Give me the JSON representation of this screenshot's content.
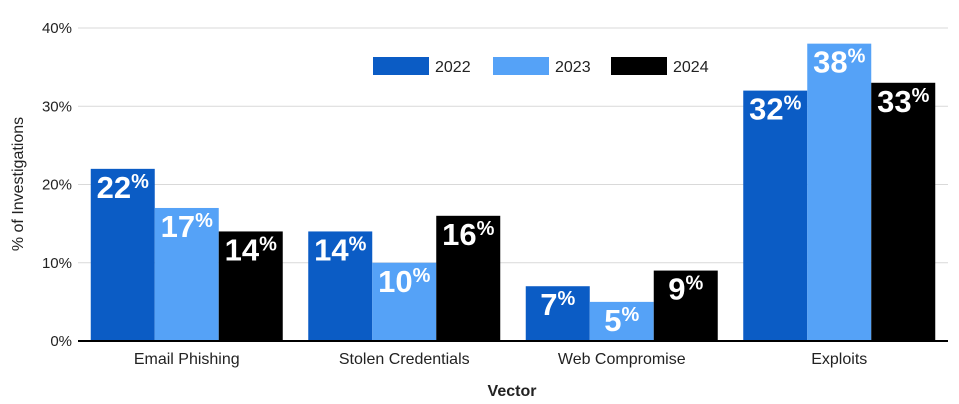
{
  "chart_data": {
    "type": "bar",
    "title": "",
    "xlabel": "Vector",
    "ylabel": "% of Investigations",
    "categories": [
      "Email Phishing",
      "Stolen Credentials",
      "Web Compromise",
      "Exploits"
    ],
    "series": [
      {
        "name": "2022",
        "color": "#0b5cc5",
        "values": [
          22,
          14,
          7,
          32
        ]
      },
      {
        "name": "2023",
        "color": "#55a2f7",
        "values": [
          17,
          10,
          5,
          38
        ]
      },
      {
        "name": "2024",
        "color": "#000000",
        "values": [
          14,
          16,
          9,
          33
        ]
      }
    ],
    "ylim": [
      0,
      40
    ],
    "yticks": [
      0,
      10,
      20,
      30,
      40
    ],
    "ytick_labels": [
      "0%",
      "10%",
      "20%",
      "30%",
      "40%"
    ],
    "value_suffix": "%",
    "grid": true,
    "legend_position": "top"
  }
}
